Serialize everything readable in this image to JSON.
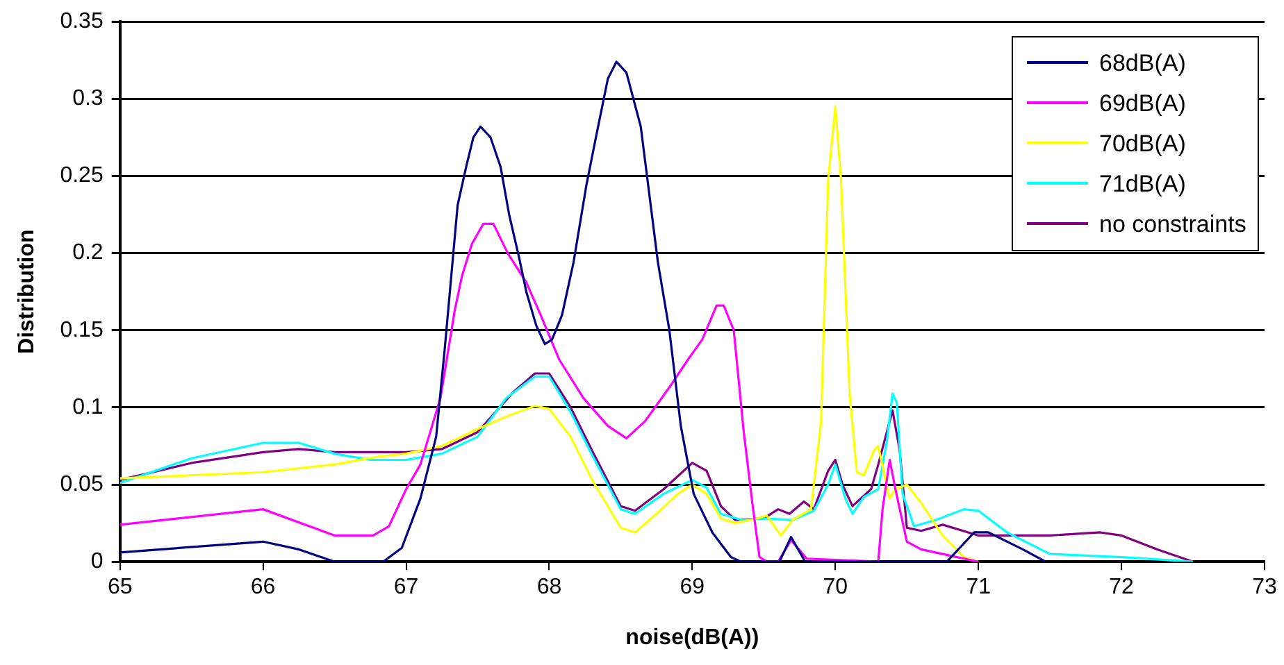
{
  "chart_data": {
    "type": "line",
    "xlabel": "noise(dB(A))",
    "ylabel": "Distribution",
    "xlim": [
      65,
      73
    ],
    "xticks": [
      65,
      66,
      67,
      68,
      69,
      70,
      71,
      72,
      73
    ],
    "ylim": [
      0,
      0.35
    ],
    "yticks": [
      0,
      0.05,
      0.1,
      0.15,
      0.2,
      0.25,
      0.3,
      0.35
    ],
    "grid": "y",
    "legend": "top right",
    "marker": "none",
    "line_style": "solid",
    "series": [
      {
        "name": "68dB(A)",
        "color": "#000080",
        "x": [
          65,
          66,
          66.25,
          66.5,
          66.84,
          66.97,
          67.1,
          67.21,
          67.27,
          67.36,
          67.42,
          67.47,
          67.52,
          67.59,
          67.66,
          67.72,
          67.79,
          67.84,
          67.91,
          67.97,
          68.02,
          68.09,
          68.17,
          68.26,
          68.32,
          68.41,
          68.47,
          68.54,
          68.64,
          68.76,
          68.84,
          68.92,
          69.01,
          69.14,
          69.27,
          69.34,
          69.61,
          69.69,
          69.79,
          70.78,
          70.97,
          71.07,
          71.31,
          71.47
        ],
        "values": [
          0.006,
          0.013,
          0.008,
          0,
          0,
          0.009,
          0.041,
          0.081,
          0.138,
          0.231,
          0.256,
          0.275,
          0.282,
          0.275,
          0.256,
          0.225,
          0.197,
          0.175,
          0.153,
          0.141,
          0.144,
          0.16,
          0.194,
          0.244,
          0.272,
          0.313,
          0.324,
          0.317,
          0.282,
          0.194,
          0.15,
          0.088,
          0.044,
          0.019,
          0.003,
          0,
          0,
          0.016,
          0,
          0,
          0.019,
          0.019,
          0.008,
          0
        ]
      },
      {
        "name": "69dB(A)",
        "color": "#ff00ff",
        "x": [
          65,
          66,
          66.5,
          66.77,
          66.88,
          67,
          67.1,
          67.24,
          67.34,
          67.39,
          67.46,
          67.54,
          67.61,
          67.71,
          67.84,
          67.94,
          68.07,
          68.24,
          68.41,
          68.54,
          68.67,
          68.84,
          68.97,
          69.07,
          69.17,
          69.22,
          69.29,
          69.36,
          69.42,
          69.47,
          69.52,
          69.6,
          69.69,
          69.8,
          70.3,
          70.33,
          70.38,
          70.42,
          70.5,
          70.6,
          70.75,
          71
        ],
        "values": [
          0.024,
          0.034,
          0.017,
          0.017,
          0.023,
          0.047,
          0.063,
          0.106,
          0.163,
          0.185,
          0.206,
          0.219,
          0.219,
          0.2,
          0.181,
          0.16,
          0.131,
          0.106,
          0.088,
          0.08,
          0.091,
          0.113,
          0.131,
          0.144,
          0.166,
          0.166,
          0.15,
          0.084,
          0.038,
          0.003,
          0,
          0,
          0.014,
          0.002,
          0,
          0.034,
          0.066,
          0.047,
          0.013,
          0.008,
          0.005,
          0
        ]
      },
      {
        "name": "70dB(A)",
        "color": "#ffff00",
        "x": [
          65,
          66,
          66.5,
          66.8,
          67,
          67.25,
          67.5,
          67.7,
          67.9,
          68,
          68.15,
          68.3,
          68.5,
          68.6,
          68.75,
          68.9,
          69,
          69.1,
          69.2,
          69.3,
          69.45,
          69.52,
          69.62,
          69.7,
          69.83,
          69.9,
          69.95,
          70,
          70.04,
          70.1,
          70.15,
          70.2,
          70.27,
          70.3,
          70.35,
          70.38,
          70.42,
          70.5,
          70.6,
          70.75,
          70.9,
          71
        ],
        "values": [
          0.054,
          0.058,
          0.063,
          0.068,
          0.07,
          0.075,
          0.086,
          0.094,
          0.101,
          0.099,
          0.081,
          0.053,
          0.022,
          0.019,
          0.031,
          0.044,
          0.05,
          0.044,
          0.028,
          0.025,
          0.028,
          0.03,
          0.017,
          0.027,
          0.034,
          0.09,
          0.247,
          0.295,
          0.247,
          0.109,
          0.058,
          0.056,
          0.072,
          0.075,
          0.053,
          0.041,
          0.047,
          0.05,
          0.038,
          0.017,
          0.003,
          0
        ]
      },
      {
        "name": "71dB(A)",
        "color": "#00ffff",
        "x": [
          65,
          65.5,
          66,
          66.25,
          66.5,
          66.75,
          67,
          67.25,
          67.5,
          67.7,
          67.9,
          68,
          68.15,
          68.3,
          68.5,
          68.6,
          68.8,
          69,
          69.1,
          69.2,
          69.35,
          69.5,
          69.7,
          69.85,
          69.95,
          70,
          70.07,
          70.12,
          70.2,
          70.3,
          70.36,
          70.4,
          70.43,
          70.47,
          70.55,
          70.7,
          70.9,
          71,
          71.2,
          71.5,
          72,
          72.5
        ],
        "values": [
          0.051,
          0.067,
          0.077,
          0.077,
          0.07,
          0.066,
          0.066,
          0.07,
          0.081,
          0.106,
          0.12,
          0.12,
          0.097,
          0.069,
          0.034,
          0.031,
          0.044,
          0.053,
          0.048,
          0.031,
          0.027,
          0.028,
          0.027,
          0.033,
          0.05,
          0.063,
          0.041,
          0.031,
          0.042,
          0.047,
          0.078,
          0.109,
          0.103,
          0.044,
          0.023,
          0.027,
          0.034,
          0.033,
          0.019,
          0.005,
          0.003,
          0
        ]
      },
      {
        "name": "no constraints",
        "color": "#800080",
        "x": [
          65,
          65.5,
          66,
          66.25,
          66.5,
          67,
          67.25,
          67.5,
          67.75,
          67.9,
          68,
          68.15,
          68.3,
          68.5,
          68.6,
          68.8,
          69,
          69.1,
          69.2,
          69.3,
          69.5,
          69.6,
          69.68,
          69.78,
          69.85,
          69.95,
          70,
          70.05,
          70.12,
          70.25,
          70.3,
          70.4,
          70.45,
          70.5,
          70.6,
          70.75,
          71,
          71.5,
          71.85,
          72,
          72.25,
          72.5
        ],
        "values": [
          0.053,
          0.064,
          0.071,
          0.073,
          0.071,
          0.071,
          0.073,
          0.084,
          0.11,
          0.122,
          0.122,
          0.1,
          0.072,
          0.036,
          0.033,
          0.047,
          0.064,
          0.059,
          0.036,
          0.027,
          0.028,
          0.034,
          0.031,
          0.039,
          0.034,
          0.059,
          0.066,
          0.05,
          0.036,
          0.047,
          0.063,
          0.098,
          0.072,
          0.022,
          0.02,
          0.024,
          0.017,
          0.017,
          0.019,
          0.017,
          0.008,
          0
        ]
      }
    ]
  }
}
